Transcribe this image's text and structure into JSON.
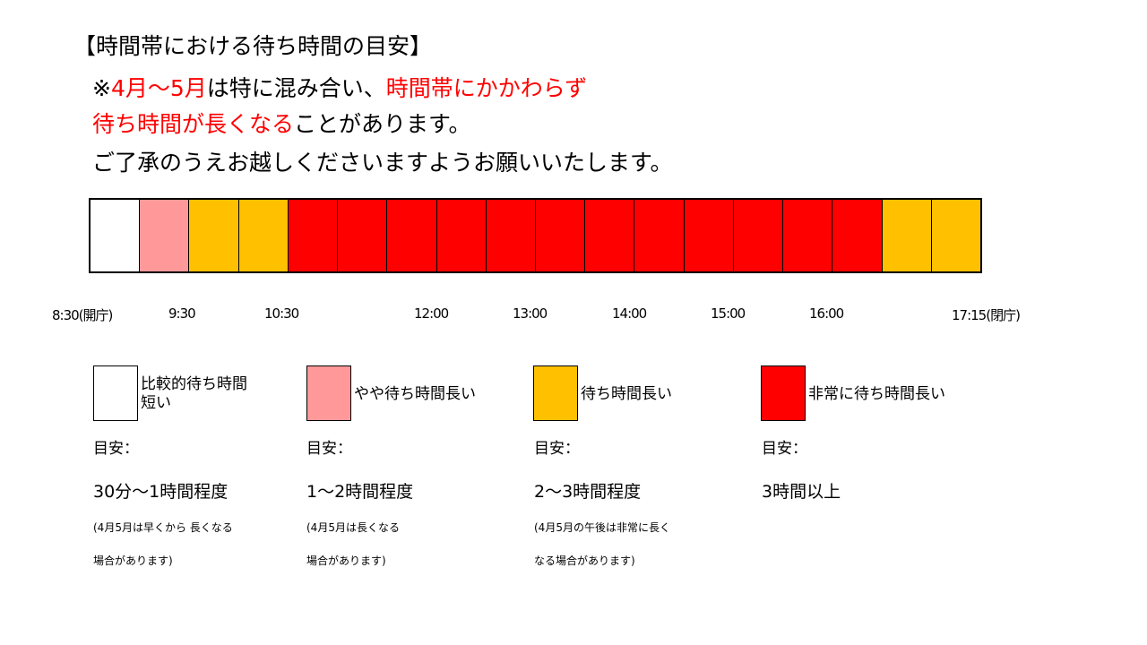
{
  "heading": "【時間帯における待ち時間の目安】",
  "notice": {
    "line1": {
      "p1": "※",
      "p2": "4月～5月",
      "p3": "は特に混み合い、",
      "p4": "時間帯にかかわらず"
    },
    "line2": {
      "p1": "待ち時間が長くなる",
      "p2": "ことがあります。"
    },
    "line3": "ご了承のうえお越しくださいますようお願いいたします。"
  },
  "colors": {
    "short": "#ffffff",
    "slightly_long": "#ff9999",
    "long": "#ffc000",
    "very_long": "#ff0000",
    "notice_red": "#ff0000"
  },
  "timeline": {
    "slot_levels": [
      "short",
      "slightly_long",
      "long",
      "long",
      "very_long",
      "very_long",
      "very_long",
      "very_long",
      "very_long",
      "very_long",
      "very_long",
      "very_long",
      "very_long",
      "very_long",
      "very_long",
      "very_long",
      "long",
      "long"
    ],
    "ticks": {
      "t0830": "8:30(開庁)",
      "t0930": "9:30",
      "t1030": "10:30",
      "t1200": "12:00",
      "t1300": "13:00",
      "t1400": "14:00",
      "t1500": "15:00",
      "t1600": "16:00",
      "t1715": "17:15(閉庁)"
    }
  },
  "legend": {
    "short": {
      "label_line1": "比較的待ち時間",
      "label_line2": "短い",
      "meta": "目安：",
      "range": "30分～1時間程度",
      "note_line1": "(4月5月は早くから  長くなる",
      "note_line2": "場合があります)"
    },
    "slightly_long": {
      "label": "やや待ち時間長い",
      "meta": "目安：",
      "range": "1～2時間程度",
      "note_line1": "(4月5月は長くなる",
      "note_line2": "場合があります)"
    },
    "long": {
      "label": "待ち時間長い",
      "meta": "目安：",
      "range": "2～3時間程度",
      "note_line1": "(4月5月の午後は非常に長く",
      "note_line2": "なる場合があります)"
    },
    "very_long": {
      "label": "非常に待ち時間長い",
      "meta": "目安：",
      "range": "3時間以上"
    }
  }
}
